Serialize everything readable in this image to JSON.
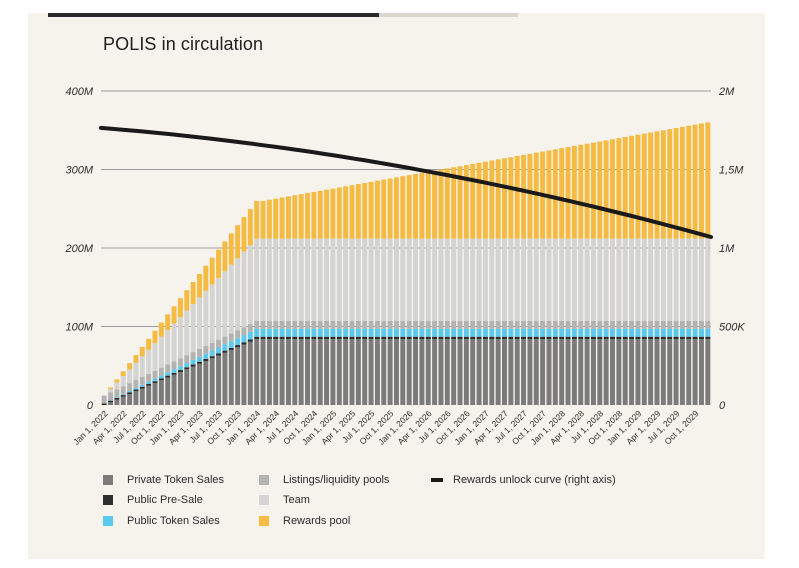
{
  "chart_data": {
    "type": "bar",
    "title": "POLIS in circulation",
    "stacked": true,
    "y_left_ticks": [
      "0",
      "100M",
      "200M",
      "300M",
      "400M"
    ],
    "y_right_ticks": [
      "0",
      "500K",
      "1M",
      "1,5M",
      "2M"
    ],
    "ylim_left": [
      0,
      400
    ],
    "ylim_right": [
      0,
      2000
    ],
    "units_left": "millions",
    "units_right": "thousands",
    "grid": true,
    "legend_position": "bottom",
    "x_tick_labels": [
      "Jan 1, 2022",
      "Apr 1, 2022",
      "Jul 1, 2022",
      "Oct 1, 2022",
      "Jan 1, 2023",
      "Apr 1, 2023",
      "Jul 1, 2023",
      "Oct 1, 2023",
      "Jan 1, 2024",
      "Apr 1, 2024",
      "Jul 1, 2024",
      "Oct 1, 2024",
      "Jan 1, 2025",
      "Apr 1, 2025",
      "Jul 1, 2025",
      "Oct 1, 2025",
      "Jan 1, 2026",
      "Apr 1, 2026",
      "Jul 1, 2026",
      "Oct 1, 2026",
      "Jan 1, 2027",
      "Apr 1, 2027",
      "Jul 1, 2027",
      "Oct 1, 2027",
      "Jan 1, 2028",
      "Apr 1, 2028",
      "Jul 1, 2028",
      "Oct 1, 2028",
      "Jan 1, 2029",
      "Apr 1, 2029",
      "Jul 1, 2029",
      "Oct 1, 2029"
    ],
    "bar_count": 96,
    "bar_period": "monthly",
    "series": [
      {
        "name": "Private Token Sales",
        "color": "#7b7b7b",
        "segments": [
          {
            "from_month": 0,
            "to_month": 24,
            "start": 0,
            "end": 84
          },
          {
            "from_month": 25,
            "to_month": 95,
            "start": 84,
            "end": 84
          }
        ]
      },
      {
        "name": "Public Pre-Sale",
        "color": "#2e2e2e",
        "segments": [
          {
            "from_month": 0,
            "to_month": 24,
            "start": 2,
            "end": 3
          },
          {
            "from_month": 25,
            "to_month": 95,
            "start": 3,
            "end": 3
          }
        ]
      },
      {
        "name": "Public Token Sales",
        "color": "#5cc9ef",
        "segments": [
          {
            "from_month": 0,
            "to_month": 24,
            "start": 0,
            "end": 10
          },
          {
            "from_month": 25,
            "to_month": 95,
            "start": 10,
            "end": 10
          }
        ]
      },
      {
        "name": "Listings/liquidity pools",
        "color": "#b3b3b3",
        "segments": [
          {
            "from_month": 0,
            "to_month": 24,
            "start": 10,
            "end": 10
          },
          {
            "from_month": 25,
            "to_month": 95,
            "start": 10,
            "end": 10
          }
        ]
      },
      {
        "name": "Team",
        "color": "#d4d4d4",
        "segments": [
          {
            "from_month": 0,
            "to_month": 24,
            "start": 0,
            "end": 105
          },
          {
            "from_month": 25,
            "to_month": 95,
            "start": 105,
            "end": 105
          }
        ]
      },
      {
        "name": "Rewards pool",
        "color": "#f6bb42",
        "segments": [
          {
            "from_month": 0,
            "to_month": 24,
            "start": 0,
            "end": 48
          },
          {
            "from_month": 25,
            "to_month": 95,
            "start": 48,
            "end": 148
          }
        ]
      }
    ],
    "line_series": {
      "name": "Rewards unlock curve (right axis)",
      "color": "#1a1a1a",
      "axis": "right",
      "start": 1765,
      "end": 1070,
      "shape": "decelerating-quadratic"
    }
  }
}
